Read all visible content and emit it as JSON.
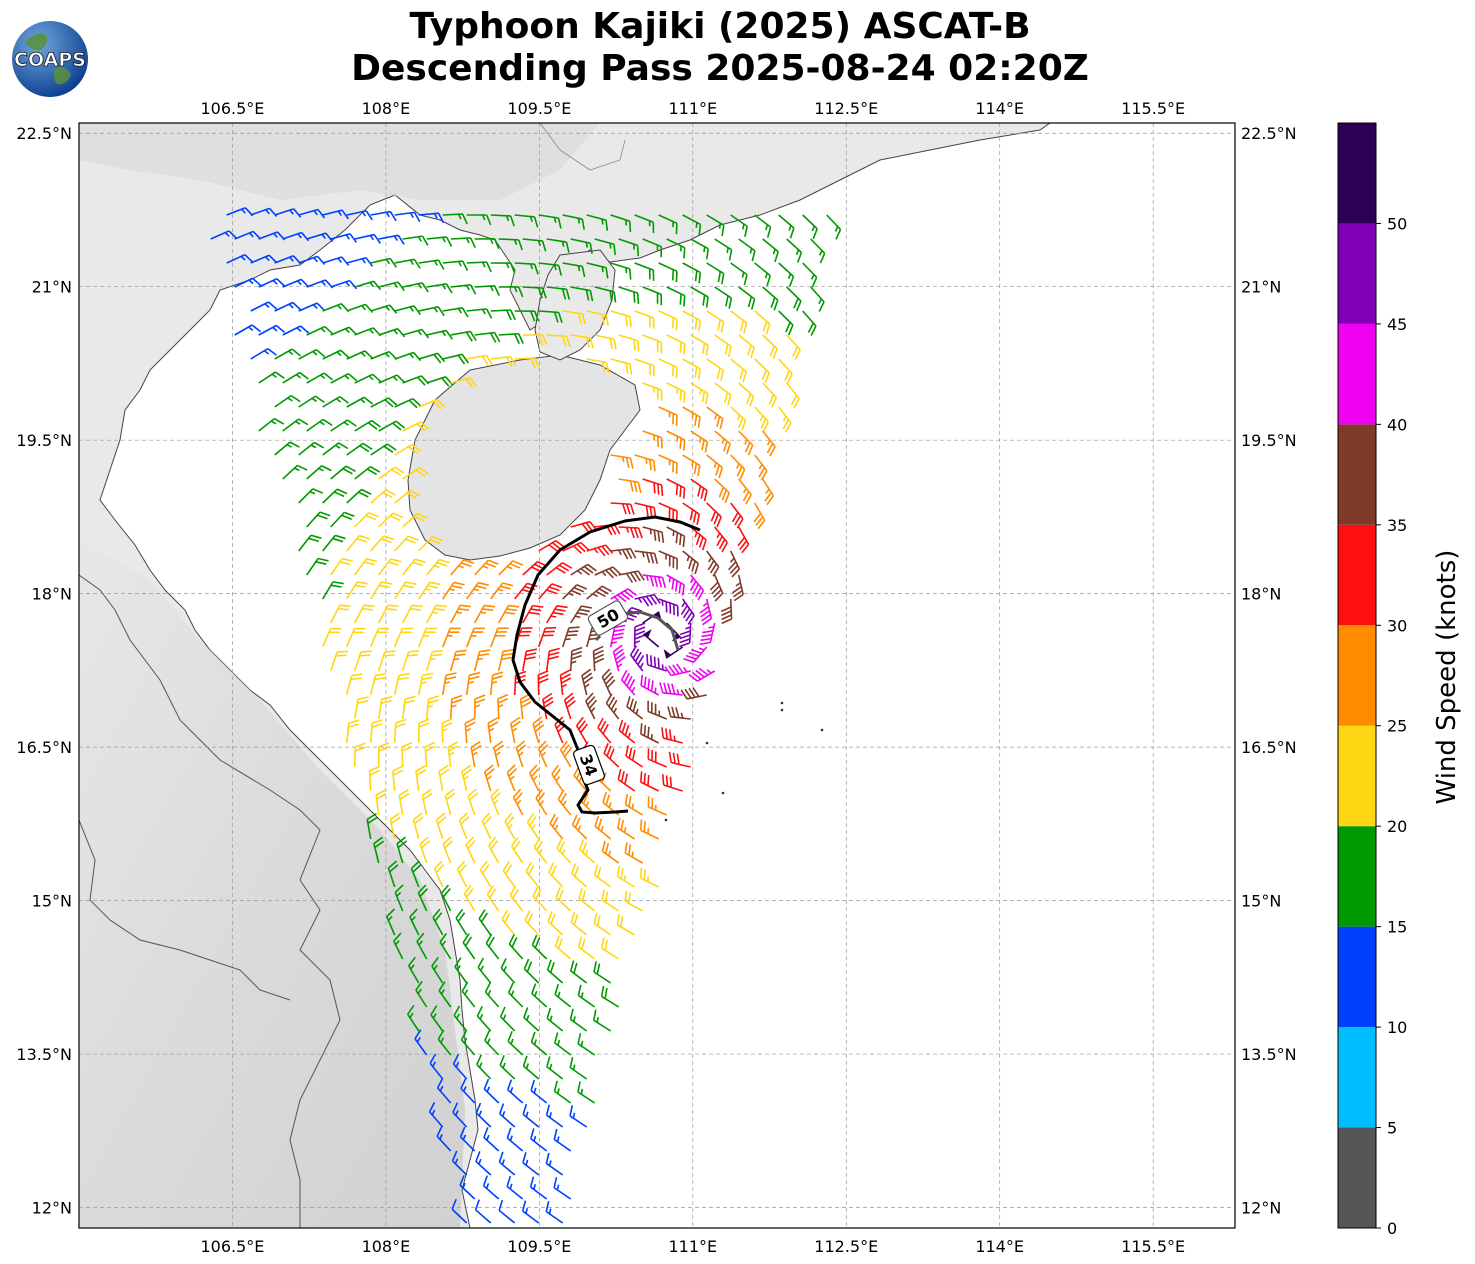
{
  "title": {
    "line1": "Typhoon Kajiki (2025) ASCAT-B",
    "line2": "Descending Pass 2025-08-24 02:20Z"
  },
  "logo": {
    "text": "COAPS",
    "icon": "globe-logo-icon"
  },
  "map": {
    "lon_range": [
      105.0,
      116.3
    ],
    "lat_range": [
      11.8,
      22.6
    ],
    "lon_ticks": [
      "106.5°E",
      "108°E",
      "109.5°E",
      "111°E",
      "112.5°E",
      "114°E",
      "115.5°E"
    ],
    "lon_tick_values": [
      106.5,
      108,
      109.5,
      111,
      112.5,
      114,
      115.5
    ],
    "lat_ticks": [
      "22.5°N",
      "21°N",
      "19.5°N",
      "18°N",
      "16.5°N",
      "15°N",
      "13.5°N",
      "12°N"
    ],
    "lat_tick_values": [
      22.5,
      21,
      19.5,
      18,
      16.5,
      15,
      13.5,
      12
    ],
    "grid": true,
    "contours": [
      {
        "label": "34",
        "color": "#000000"
      },
      {
        "label": "50",
        "color": "#555555"
      }
    ],
    "storm_center": {
      "lon": 110.7,
      "lat": 17.6
    }
  },
  "colorbar": {
    "title": "Wind Speed (knots)",
    "tick_labels": [
      "0",
      "5",
      "10",
      "15",
      "20",
      "25",
      "30",
      "35",
      "40",
      "45",
      "50"
    ],
    "bins": [
      {
        "range": "0-5",
        "color": "#555555"
      },
      {
        "range": "5-10",
        "color": "#00bfff"
      },
      {
        "range": "10-15",
        "color": "#0040ff"
      },
      {
        "range": "15-20",
        "color": "#009900"
      },
      {
        "range": "20-25",
        "color": "#ffd614"
      },
      {
        "range": "25-30",
        "color": "#ff8c00"
      },
      {
        "range": "30-35",
        "color": "#ff1010"
      },
      {
        "range": "35-40",
        "color": "#803a28"
      },
      {
        "range": "40-45",
        "color": "#f000f0"
      },
      {
        "range": "45-50",
        "color": "#8000b8"
      },
      {
        "range": "50+",
        "color": "#2d0058"
      }
    ]
  }
}
